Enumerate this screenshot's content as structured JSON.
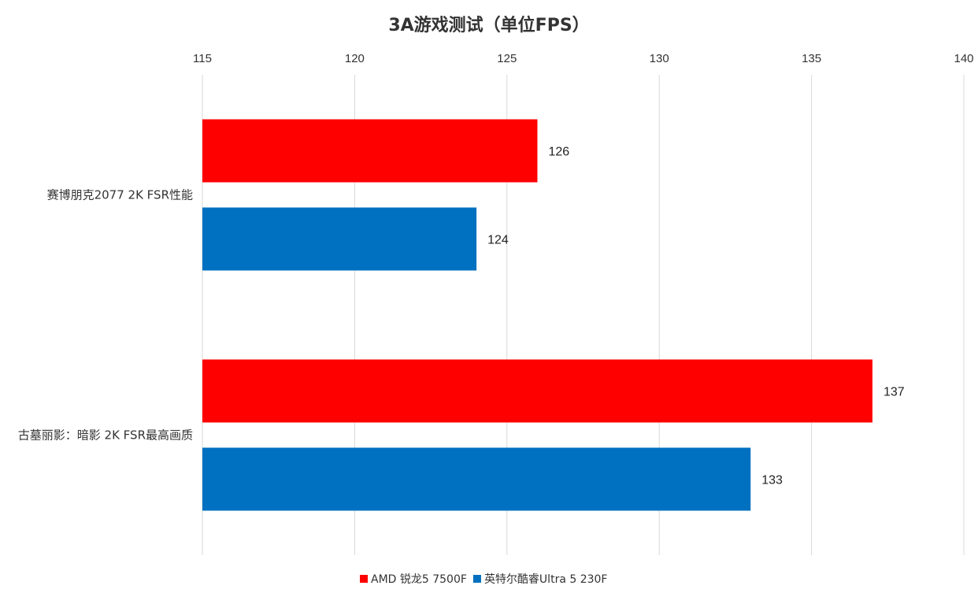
{
  "chart_data": {
    "type": "bar",
    "orientation": "horizontal",
    "title": "3A游戏测试（单位FPS）",
    "xlabel": "",
    "ylabel": "",
    "xlim": [
      115,
      140
    ],
    "ticks": [
      "115",
      "120",
      "125",
      "130",
      "135",
      "140"
    ],
    "tick_values": [
      115,
      120,
      125,
      130,
      135,
      140
    ],
    "axis_position": "top",
    "grid": true,
    "legend": "bottom",
    "categories": [
      "赛博朋克2077 2K FSR性能",
      "古墓丽影：暗影 2K FSR最高画质"
    ],
    "series": [
      {
        "name": "AMD 锐龙5 7500F",
        "color": "#ff0000",
        "values": [
          126,
          137
        ]
      },
      {
        "name": "英特尔酷睿Ultra 5 230F",
        "color": "#0070c0",
        "values": [
          124,
          133
        ]
      }
    ]
  }
}
